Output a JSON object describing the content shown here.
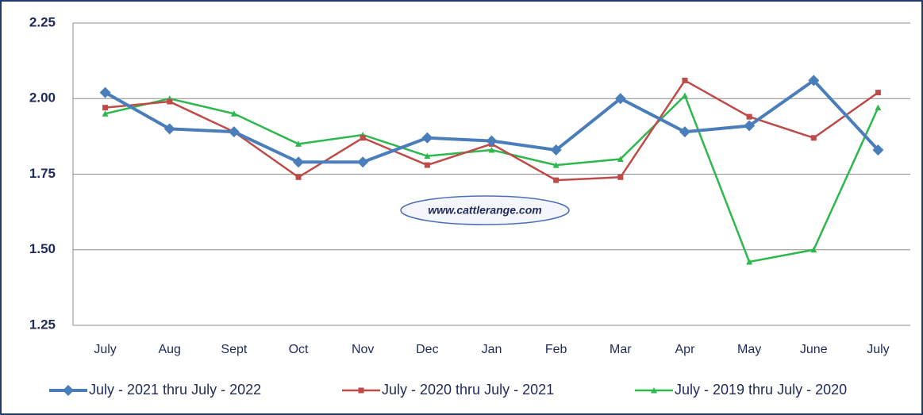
{
  "chart_data": {
    "type": "line",
    "watermark": "www.cattlerange.com",
    "categories": [
      "July",
      "Aug",
      "Sept",
      "Oct",
      "Nov",
      "Dec",
      "Jan",
      "Feb",
      "Mar",
      "Apr",
      "May",
      "June",
      "July"
    ],
    "series": [
      {
        "name": "July - 2021 thru July - 2022",
        "color": "#4a7ebb",
        "marker": "diamond",
        "values": [
          2.02,
          1.9,
          1.89,
          1.79,
          1.79,
          1.87,
          1.86,
          1.83,
          2.0,
          1.89,
          1.91,
          2.06,
          1.83
        ]
      },
      {
        "name": "July - 2020 thru July - 2021",
        "color": "#be4b48",
        "marker": "square",
        "values": [
          1.97,
          1.99,
          1.89,
          1.74,
          1.87,
          1.78,
          1.85,
          1.73,
          1.74,
          2.06,
          1.94,
          1.87,
          2.02
        ]
      },
      {
        "name": "July - 2019 thru July - 2020",
        "color": "#2db84d",
        "marker": "triangle",
        "values": [
          1.95,
          2.0,
          1.95,
          1.85,
          1.88,
          1.81,
          1.83,
          1.78,
          1.8,
          2.01,
          1.46,
          1.5,
          1.97
        ]
      }
    ],
    "ylim": [
      1.25,
      2.25
    ],
    "yticks": [
      {
        "value": 1.25,
        "label": "1.25"
      },
      {
        "value": 1.5,
        "label": "1.50"
      },
      {
        "value": 1.75,
        "label": "1.75"
      },
      {
        "value": 2.0,
        "label": "2.00"
      },
      {
        "value": 2.25,
        "label": "2.25"
      }
    ],
    "grid": true,
    "legend": "bottom"
  }
}
